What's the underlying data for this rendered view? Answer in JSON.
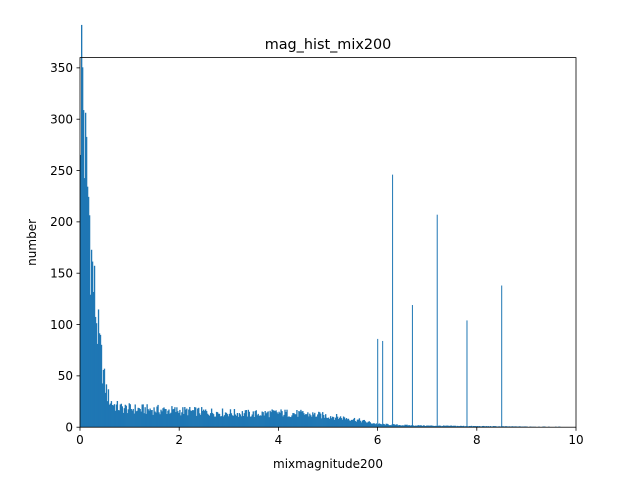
{
  "chart_data": {
    "type": "histogram",
    "title": "mag_hist_mix200",
    "xlabel": "mixmagnitude200",
    "ylabel": "number",
    "xlim": [
      0,
      10
    ],
    "ylim": [
      0,
      360
    ],
    "xticks": [
      0,
      2,
      4,
      6,
      8,
      10
    ],
    "yticks": [
      0,
      50,
      100,
      150,
      200,
      250,
      300,
      350
    ],
    "bin_width": 0.02,
    "bar_color": "#1f77b4",
    "grid": false,
    "legend": "none",
    "profile": [
      [
        0.0,
        310
      ],
      [
        0.02,
        345
      ],
      [
        0.04,
        340
      ],
      [
        0.06,
        335
      ],
      [
        0.08,
        300
      ],
      [
        0.1,
        262
      ],
      [
        0.14,
        240
      ],
      [
        0.18,
        215
      ],
      [
        0.22,
        170
      ],
      [
        0.26,
        145
      ],
      [
        0.3,
        125
      ],
      [
        0.34,
        100
      ],
      [
        0.38,
        85
      ],
      [
        0.42,
        70
      ],
      [
        0.46,
        55
      ],
      [
        0.5,
        42
      ],
      [
        0.55,
        32
      ],
      [
        0.6,
        26
      ],
      [
        0.7,
        21
      ],
      [
        0.8,
        19
      ],
      [
        1.0,
        18
      ],
      [
        1.5,
        17
      ],
      [
        2.0,
        16
      ],
      [
        2.5,
        15
      ],
      [
        3.0,
        14
      ],
      [
        3.5,
        13
      ],
      [
        4.0,
        14
      ],
      [
        4.5,
        13
      ],
      [
        5.0,
        11
      ],
      [
        5.5,
        8
      ],
      [
        5.8,
        5
      ],
      [
        6.0,
        3
      ],
      [
        6.5,
        2
      ],
      [
        7.0,
        1.5
      ],
      [
        8.0,
        1
      ],
      [
        9.0,
        0.6
      ],
      [
        10.0,
        0.3
      ]
    ],
    "spikes": [
      {
        "x": 6.0,
        "value": 86
      },
      {
        "x": 6.1,
        "value": 84
      },
      {
        "x": 6.3,
        "value": 246
      },
      {
        "x": 6.7,
        "value": 119
      },
      {
        "x": 7.2,
        "value": 207
      },
      {
        "x": 7.8,
        "value": 104
      },
      {
        "x": 8.5,
        "value": 138
      }
    ]
  }
}
